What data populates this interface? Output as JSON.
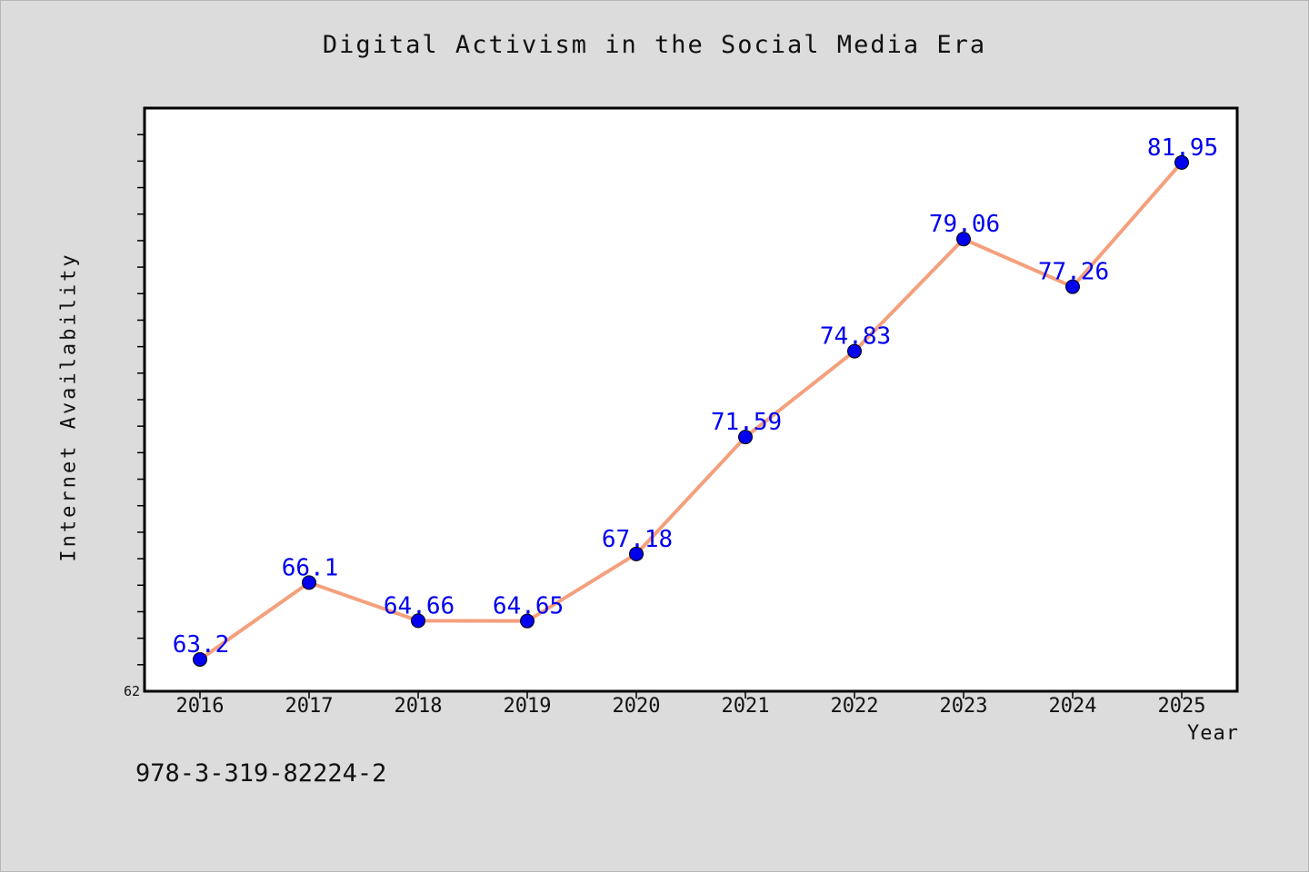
{
  "chart_data": {
    "type": "line",
    "title": "Digital Activism in the Social Media Era",
    "xlabel": "Year",
    "ylabel": "Internet Availability",
    "x": [
      "2016",
      "2017",
      "2018",
      "2019",
      "2020",
      "2021",
      "2022",
      "2023",
      "2024",
      "2025"
    ],
    "series": [
      {
        "values": [
          63.2,
          66.1,
          64.66,
          64.65,
          67.18,
          71.59,
          74.83,
          79.06,
          77.26,
          81.95
        ],
        "labels": [
          "63.2",
          "66.1",
          "64.66",
          "64.65",
          "67.18",
          "71.59",
          "74.83",
          "79.06",
          "77.26",
          "81.95"
        ],
        "line_color": "#f4a07c",
        "marker_color": "#0000ee"
      }
    ],
    "ylim": [
      62,
      84
    ],
    "y_tick_labels": [
      "62"
    ],
    "grid": false,
    "legend": "none"
  },
  "footer": {
    "isbn": "978-3-319-82224-2"
  }
}
